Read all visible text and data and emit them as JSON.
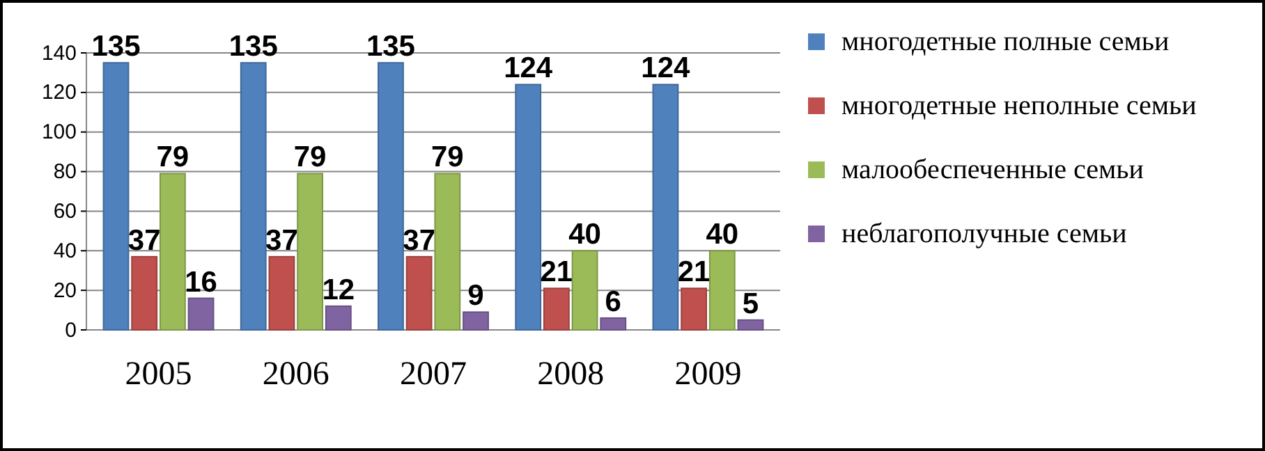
{
  "chart_data": {
    "type": "bar",
    "categories": [
      "2005",
      "2006",
      "2007",
      "2008",
      "2009"
    ],
    "series": [
      {
        "name": "многодетные полные семьи",
        "color": "#4f81bd",
        "values": [
          135,
          135,
          135,
          124,
          124
        ]
      },
      {
        "name": "многодетные неполные семьи",
        "color": "#c0504d",
        "values": [
          37,
          37,
          37,
          21,
          21
        ]
      },
      {
        "name": "малообеспеченные семьи",
        "color": "#9bbb59",
        "values": [
          79,
          79,
          79,
          40,
          40
        ]
      },
      {
        "name": "неблагополучные семьи",
        "color": "#8064a2",
        "values": [
          16,
          12,
          9,
          6,
          5
        ]
      }
    ],
    "ylim": [
      0,
      140
    ],
    "yticks": [
      0,
      20,
      40,
      60,
      80,
      100,
      120,
      140
    ],
    "grid": "y",
    "legend": "right",
    "data_labels": true
  }
}
